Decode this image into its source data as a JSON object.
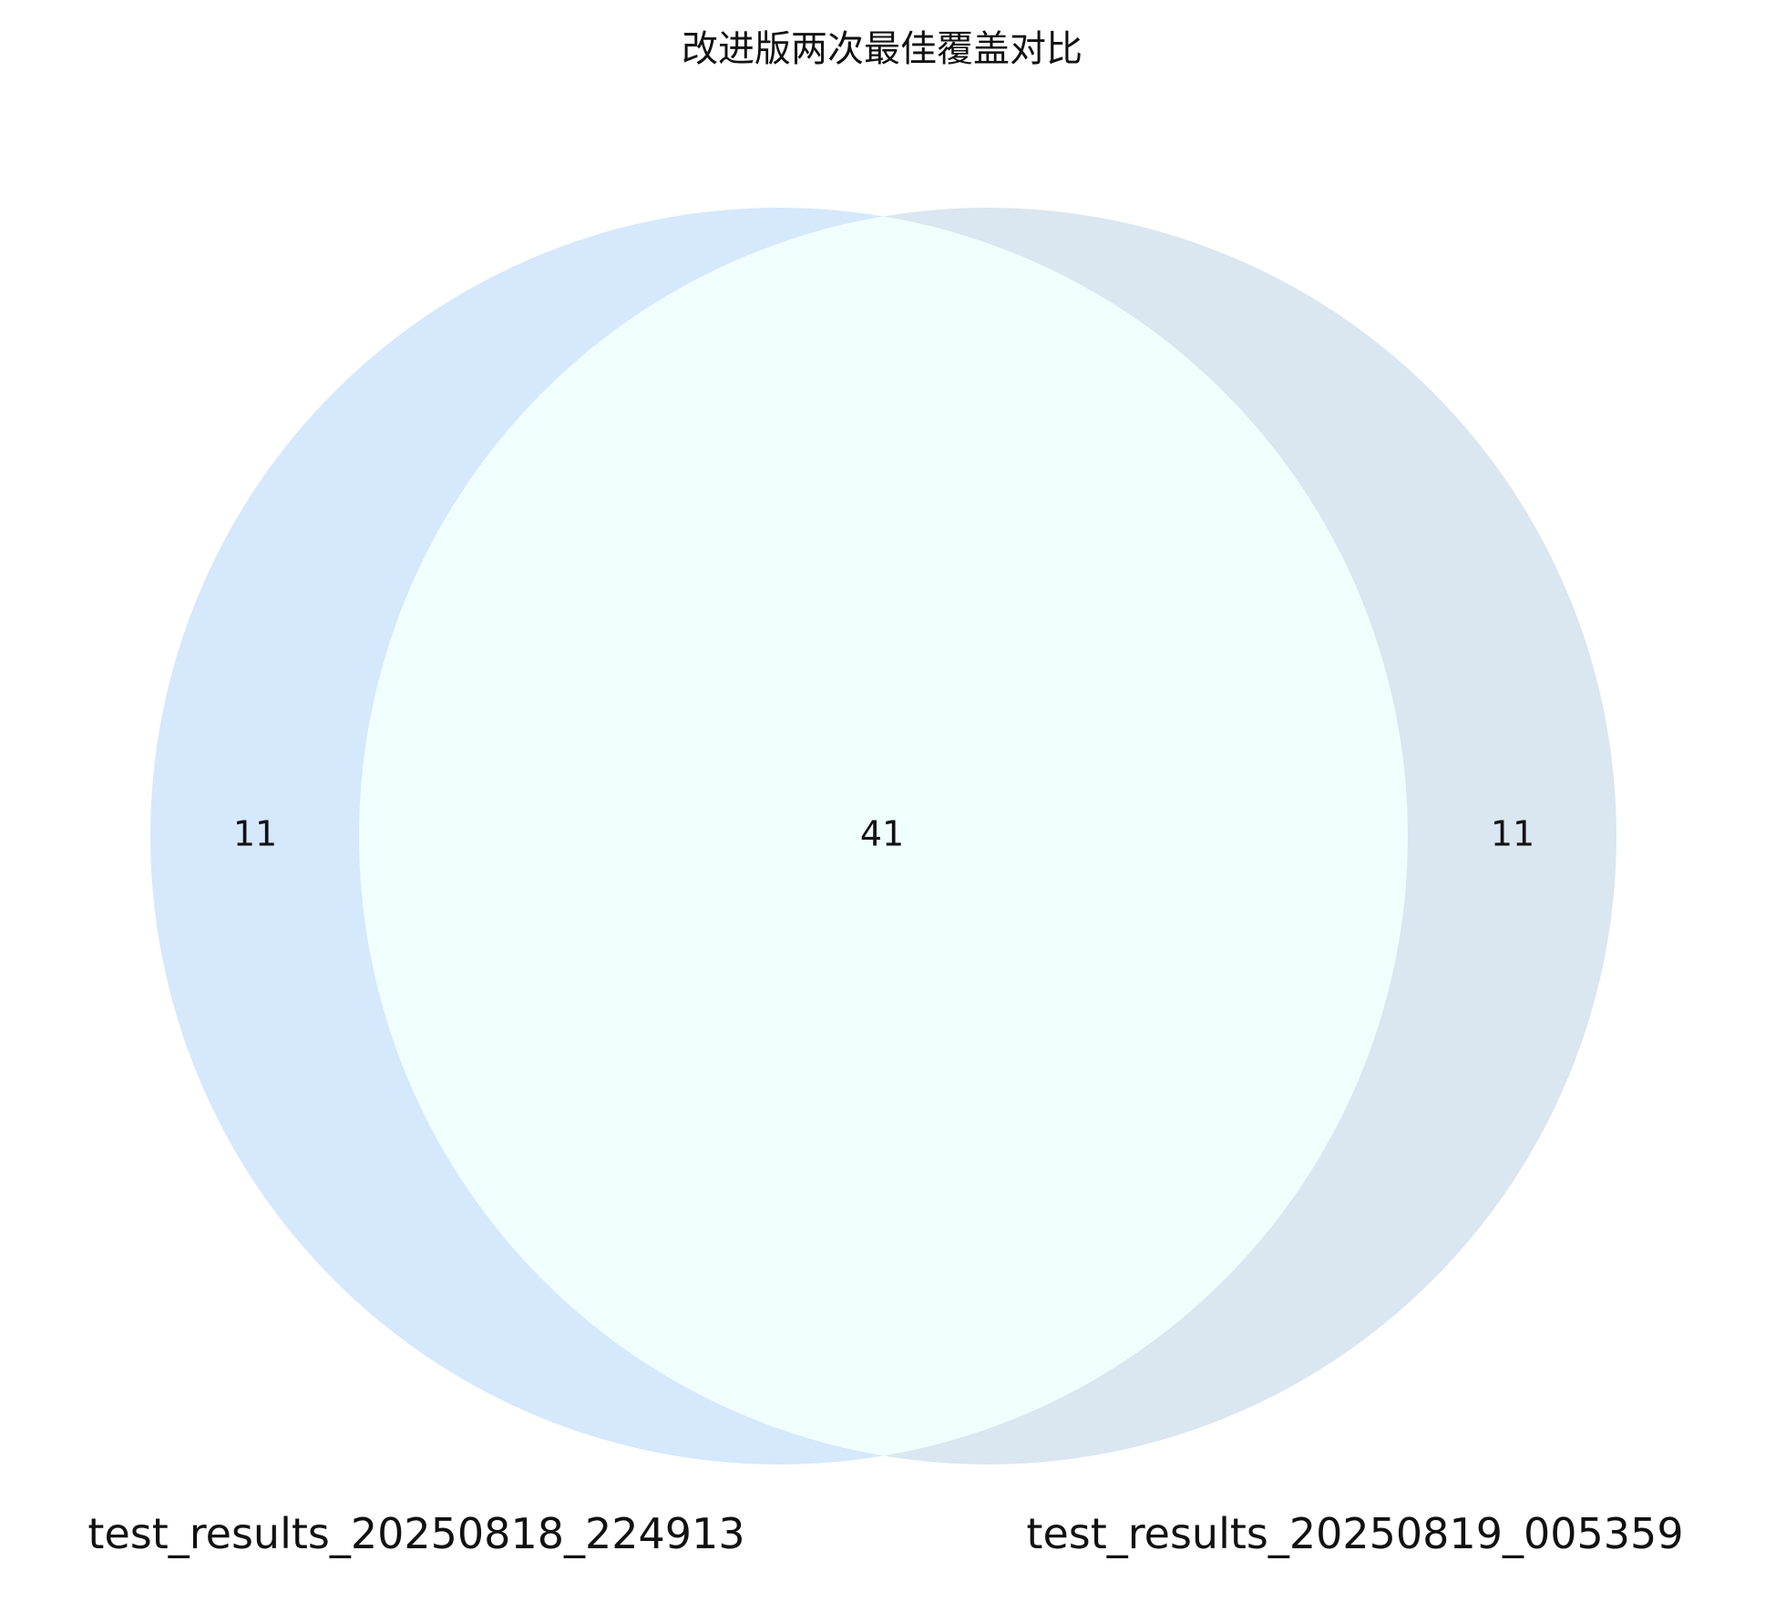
{
  "chart_data": {
    "type": "venn",
    "title": "改进版两次最佳覆盖对比",
    "sets": [
      {
        "name": "test_results_20250818_224913",
        "color": "#d5e8fc"
      },
      {
        "name": "test_results_20250819_005359",
        "color": "#dae6f0"
      }
    ],
    "regions": {
      "only_a": "11",
      "intersection": "41",
      "only_b": "11"
    },
    "colors": {
      "intersection": "#f0fefe",
      "background": "#ffffff"
    }
  }
}
